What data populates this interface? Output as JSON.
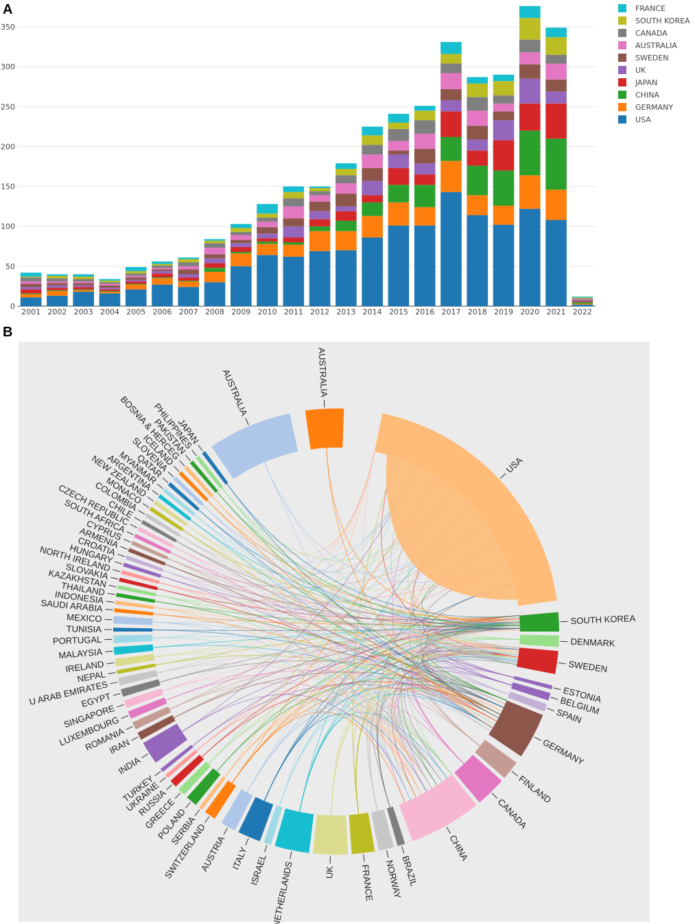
{
  "panels": {
    "a_letter": "A",
    "b_letter": "B"
  },
  "chart_data": [
    {
      "type": "bar",
      "stacked": true,
      "title": "",
      "xlabel": "",
      "ylabel": "",
      "ylim": [
        0,
        375
      ],
      "yticks": [
        0,
        50,
        100,
        150,
        200,
        250,
        300,
        350
      ],
      "categories": [
        "2001",
        "2002",
        "2003",
        "2004",
        "2005",
        "2006",
        "2007",
        "2008",
        "2009",
        "2010",
        "2011",
        "2012",
        "2013",
        "2014",
        "2015",
        "2016",
        "2017",
        "2018",
        "2019",
        "2020",
        "2021",
        "2022"
      ],
      "legend_position": "top-right",
      "series": [
        {
          "name": "USA",
          "color": "#1f77b4",
          "values": [
            11,
            13,
            18,
            16,
            21,
            27,
            24,
            30,
            50,
            64,
            62,
            69,
            70,
            86,
            101,
            101,
            143,
            114,
            102,
            122,
            108,
            2
          ]
        },
        {
          "name": "GERMANY",
          "color": "#ff7f0e",
          "values": [
            4,
            6,
            2,
            2,
            6,
            8,
            7,
            13,
            16,
            14,
            15,
            25,
            24,
            27,
            29,
            23,
            39,
            25,
            24,
            42,
            38,
            1
          ]
        },
        {
          "name": "CHINA",
          "color": "#2ca02c",
          "values": [
            1,
            1,
            1,
            1,
            1,
            1,
            1,
            5,
            2,
            3,
            3,
            6,
            13,
            17,
            22,
            28,
            30,
            37,
            44,
            56,
            64,
            2
          ]
        },
        {
          "name": "JAPAN",
          "color": "#d62728",
          "values": [
            5,
            3,
            3,
            2,
            3,
            5,
            4,
            6,
            6,
            4,
            6,
            9,
            12,
            9,
            21,
            13,
            32,
            19,
            38,
            34,
            44,
            1
          ]
        },
        {
          "name": "UK",
          "color": "#9467bd",
          "values": [
            3,
            3,
            2,
            2,
            2,
            3,
            4,
            6,
            5,
            6,
            14,
            10,
            6,
            18,
            17,
            14,
            14,
            14,
            25,
            31,
            15,
            1
          ]
        },
        {
          "name": "SWEDEN",
          "color": "#8c564b",
          "values": [
            4,
            3,
            3,
            3,
            3,
            2,
            6,
            5,
            4,
            8,
            10,
            12,
            16,
            16,
            5,
            18,
            14,
            17,
            11,
            18,
            15,
            1
          ]
        },
        {
          "name": "AUSTRALIA",
          "color": "#e377c2",
          "values": [
            3,
            2,
            2,
            2,
            2,
            2,
            4,
            8,
            6,
            7,
            15,
            8,
            13,
            17,
            12,
            19,
            20,
            19,
            10,
            15,
            20,
            1
          ]
        },
        {
          "name": "CANADA",
          "color": "#7f7f7f",
          "values": [
            5,
            4,
            3,
            2,
            3,
            3,
            5,
            6,
            4,
            5,
            10,
            5,
            10,
            12,
            15,
            17,
            12,
            17,
            10,
            16,
            11,
            1
          ]
        },
        {
          "name": "SOUTH KOREA",
          "color": "#bcbd22",
          "values": [
            1,
            3,
            3,
            2,
            3,
            2,
            4,
            3,
            5,
            5,
            8,
            4,
            8,
            12,
            8,
            12,
            12,
            17,
            18,
            27,
            22,
            1
          ]
        },
        {
          "name": "FRANCE",
          "color": "#17becf",
          "values": [
            5,
            2,
            3,
            2,
            5,
            3,
            2,
            2,
            5,
            12,
            7,
            2,
            7,
            11,
            11,
            6,
            15,
            8,
            8,
            15,
            12,
            1
          ]
        }
      ]
    },
    {
      "type": "chord",
      "title": "",
      "background": "#ebebeb",
      "countries": [
        {
          "name": "USA",
          "color": "#ffbb78",
          "arc": [
            12,
            82
          ]
        },
        {
          "name": "SOUTH KOREA",
          "color": "#2ca02c",
          "arc": [
            85,
            90
          ]
        },
        {
          "name": "DENMARK",
          "color": "#98df8a",
          "arc": [
            91,
            94
          ]
        },
        {
          "name": "SWEDEN",
          "color": "#d62728",
          "arc": [
            95,
            101
          ]
        },
        {
          "name": "ESTONIA",
          "color": "#9467bd",
          "arc": [
            104,
            105
          ]
        },
        {
          "name": "BELGIUM",
          "color": "#9467bd",
          "arc": [
            106,
            108
          ]
        },
        {
          "name": "SPAIN",
          "color": "#c5b0d5",
          "arc": [
            109,
            111
          ]
        },
        {
          "name": "GERMANY",
          "color": "#8c564b",
          "arc": [
            112,
            124
          ]
        },
        {
          "name": "FINLAND",
          "color": "#c49c94",
          "arc": [
            126,
            131
          ]
        },
        {
          "name": "CANADA",
          "color": "#e377c2",
          "arc": [
            132,
            140
          ]
        },
        {
          "name": "CHINA",
          "color": "#f7b6d2",
          "arc": [
            141,
            160
          ]
        },
        {
          "name": "BRAZIL",
          "color": "#7f7f7f",
          "arc": [
            162,
            164
          ]
        },
        {
          "name": "NORWAY",
          "color": "#c7c7c7",
          "arc": [
            165,
            169
          ]
        },
        {
          "name": "FRANCE",
          "color": "#bcbd22",
          "arc": [
            170,
            176
          ]
        },
        {
          "name": "UK",
          "color": "#dbdb8d",
          "arc": [
            177,
            186
          ]
        },
        {
          "name": "NETHERLANDS",
          "color": "#17becf",
          "arc": [
            187,
            196
          ]
        },
        {
          "name": "ISRAEL",
          "color": "#9edae5",
          "arc": [
            197,
            199
          ]
        },
        {
          "name": "ITALY",
          "color": "#1f77b4",
          "arc": [
            200,
            206
          ]
        },
        {
          "name": "AUSTRIA",
          "color": "#aec7e8",
          "arc": [
            207,
            211
          ]
        },
        {
          "name": "SWITZERLAND",
          "color": "#ff7f0e",
          "arc": [
            213,
            216
          ]
        },
        {
          "name": "SERBIA",
          "color": "#ffbb78",
          "arc": [
            217,
            218
          ]
        },
        {
          "name": "POLAND",
          "color": "#2ca02c",
          "arc": [
            219,
            222
          ]
        },
        {
          "name": "GREECE",
          "color": "#98df8a",
          "arc": [
            223,
            225
          ]
        },
        {
          "name": "RUSSIA",
          "color": "#d62728",
          "arc": [
            226,
            228
          ]
        },
        {
          "name": "UKRAINE",
          "color": "#ff9896",
          "arc": [
            229,
            230
          ]
        },
        {
          "name": "TURKEY",
          "color": "#9467bd",
          "arc": [
            231,
            232
          ]
        },
        {
          "name": "INDIA",
          "color": "#9467bd",
          "arc": [
            234,
            240
          ]
        },
        {
          "name": "IRAN",
          "color": "#8c564b",
          "arc": [
            241,
            243
          ]
        },
        {
          "name": "ROMANIA",
          "color": "#c49c94",
          "arc": [
            244,
            246
          ]
        },
        {
          "name": "LUXEMBOURG",
          "color": "#e377c2",
          "arc": [
            247,
            249
          ]
        },
        {
          "name": "SINGAPORE",
          "color": "#f7b6d2",
          "arc": [
            250,
            252
          ]
        },
        {
          "name": "EGYPT",
          "color": "#7f7f7f",
          "arc": [
            253,
            255
          ]
        },
        {
          "name": "U ARAB EMIRATES",
          "color": "#c7c7c7",
          "arc": [
            256,
            258
          ]
        },
        {
          "name": "NEPAL",
          "color": "#bcbd22",
          "arc": [
            259,
            260
          ]
        },
        {
          "name": "IRELAND",
          "color": "#dbdb8d",
          "arc": [
            261,
            263
          ]
        },
        {
          "name": "MALAYSIA",
          "color": "#17becf",
          "arc": [
            264,
            266
          ]
        },
        {
          "name": "PORTUGAL",
          "color": "#9edae5",
          "arc": [
            267,
            269
          ]
        },
        {
          "name": "TUNISIA",
          "color": "#1f77b4",
          "arc": [
            270,
            271
          ]
        },
        {
          "name": "MEXICO",
          "color": "#aec7e8",
          "arc": [
            272,
            274
          ]
        },
        {
          "name": "SAUDI ARABIA",
          "color": "#ff7f0e",
          "arc": [
            275,
            276
          ]
        },
        {
          "name": "INDONESIA",
          "color": "#ffbb78",
          "arc": [
            277,
            278
          ]
        },
        {
          "name": "THAILAND",
          "color": "#2ca02c",
          "arc": [
            279,
            280
          ]
        },
        {
          "name": "KAZAKHSTAN",
          "color": "#98df8a",
          "arc": [
            281,
            282
          ]
        },
        {
          "name": "SLOVAKIA",
          "color": "#d62728",
          "arc": [
            283,
            284
          ]
        },
        {
          "name": "NORTH IRELAND",
          "color": "#ff9896",
          "arc": [
            285,
            286
          ]
        },
        {
          "name": "HUNGARY",
          "color": "#9467bd",
          "arc": [
            287,
            288
          ]
        },
        {
          "name": "CROATIA",
          "color": "#c5b0d5",
          "arc": [
            289,
            290
          ]
        },
        {
          "name": "ARMENIA",
          "color": "#8c564b",
          "arc": [
            291,
            292
          ]
        },
        {
          "name": "CYPRUS",
          "color": "#c49c94",
          "arc": [
            293,
            294
          ]
        },
        {
          "name": "SOUTH AFRICA",
          "color": "#e377c2",
          "arc": [
            295,
            296
          ]
        },
        {
          "name": "CZECH REPUBLIC",
          "color": "#f7b6d2",
          "arc": [
            297,
            298
          ]
        },
        {
          "name": "CHILE",
          "color": "#7f7f7f",
          "arc": [
            299,
            300
          ]
        },
        {
          "name": "COLOMBIA",
          "color": "#c7c7c7",
          "arc": [
            301,
            302
          ]
        },
        {
          "name": "MONACO",
          "color": "#bcbd22",
          "arc": [
            303,
            304
          ]
        },
        {
          "name": "NEW ZEALAND",
          "color": "#dbdb8d",
          "arc": [
            305,
            306
          ]
        },
        {
          "name": "ARGENTINA",
          "color": "#17becf",
          "arc": [
            307,
            308
          ]
        },
        {
          "name": "MYANMAR",
          "color": "#9edae5",
          "arc": [
            309,
            310
          ]
        },
        {
          "name": "QATAR",
          "color": "#1f77b4",
          "arc": [
            311,
            312
          ]
        },
        {
          "name": "SLOVENIA",
          "color": "#aec7e8",
          "arc": [
            313,
            314
          ]
        },
        {
          "name": "ICELAND",
          "color": "#ff7f0e",
          "arc": [
            315,
            316
          ]
        },
        {
          "name": "BOSNIA & HERCEG",
          "color": "#ffbb78",
          "arc": [
            317,
            318
          ]
        },
        {
          "name": "PAKISTAN",
          "color": "#2ca02c",
          "arc": [
            319,
            320
          ]
        },
        {
          "name": "PHILIPPINES",
          "color": "#98df8a",
          "arc": [
            321,
            322
          ]
        },
        {
          "name": "JAPAN",
          "color": "#1f77b4",
          "arc": [
            323,
            324
          ]
        },
        {
          "name": "AUSTRALIA",
          "color": "#aec7e8",
          "arc": [
            326,
            348
          ]
        },
        {
          "name": "AUSTRALIA",
          "color": "#ff7f0e",
          "arc": [
            352,
            362
          ]
        }
      ]
    }
  ]
}
